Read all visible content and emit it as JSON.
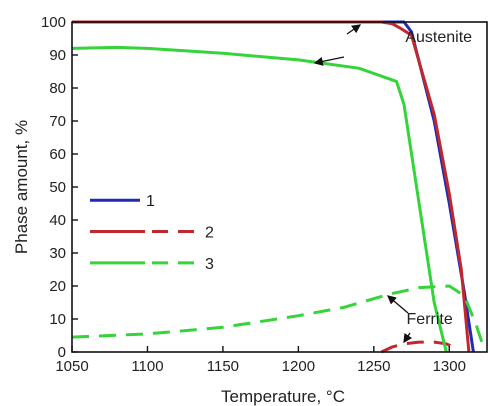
{
  "chart_data": {
    "type": "line",
    "xlabel": "Temperature, ",
    "xlabel_unit": "°C",
    "ylabel": "Phase amount, %",
    "xlim": [
      1050,
      1325
    ],
    "ylim": [
      0,
      100
    ],
    "x_ticks": [
      1050,
      1100,
      1150,
      1200,
      1250,
      1300
    ],
    "y_ticks": [
      0,
      10,
      20,
      30,
      40,
      50,
      60,
      70,
      80,
      90,
      100
    ],
    "grid": false,
    "legend_position": "lower-left",
    "legend": [
      {
        "label": "1",
        "color": "#1f2bb5",
        "styles": [
          "solid"
        ]
      },
      {
        "label": "2",
        "color": "#c0282d",
        "styles": [
          "solid",
          "dashed"
        ]
      },
      {
        "label": "3",
        "color": "#34d43a",
        "styles": [
          "solid",
          "dashed"
        ]
      }
    ],
    "series": [
      {
        "key": "s1_austenite",
        "color": "#1f2bb5",
        "dash": "solid",
        "x": [
          1050,
          1270,
          1275,
          1290,
          1300,
          1310,
          1316
        ],
        "y": [
          100,
          100,
          97,
          70,
          45,
          18,
          0
        ]
      },
      {
        "key": "s2_austenite",
        "color": "#c0282d",
        "dash": "solid",
        "x": [
          1050,
          1255,
          1262,
          1268,
          1275,
          1290,
          1300,
          1308,
          1313
        ],
        "y": [
          100,
          100,
          99.5,
          98,
          96,
          72,
          48,
          25,
          0
        ]
      },
      {
        "key": "s2_ferrite",
        "color": "#c0282d",
        "dash": "dashed",
        "x": [
          1255,
          1262,
          1270,
          1280,
          1290,
          1298,
          1305
        ],
        "y": [
          0,
          1.5,
          2.5,
          3,
          3,
          2.5,
          1
        ]
      },
      {
        "key": "s3_austenite",
        "color": "#34d43a",
        "dash": "solid",
        "x": [
          1050,
          1080,
          1100,
          1150,
          1200,
          1240,
          1265,
          1270,
          1280,
          1290,
          1298
        ],
        "y": [
          92,
          92.3,
          92,
          90.5,
          88.5,
          86,
          82,
          75,
          45,
          15,
          0
        ]
      },
      {
        "key": "s3_ferrite",
        "color": "#34d43a",
        "dash": "dashed",
        "x": [
          1050,
          1100,
          1150,
          1200,
          1230,
          1260,
          1280,
          1300,
          1310,
          1318,
          1323
        ],
        "y": [
          4.5,
          5.5,
          7.5,
          11,
          13.5,
          17.5,
          19.5,
          20,
          17,
          8,
          1
        ]
      }
    ],
    "annotations": [
      {
        "text": "Austenite",
        "x": 1293,
        "y": 94
      },
      {
        "text": "Ferrite",
        "x": 1287,
        "y": 8.5
      }
    ]
  }
}
